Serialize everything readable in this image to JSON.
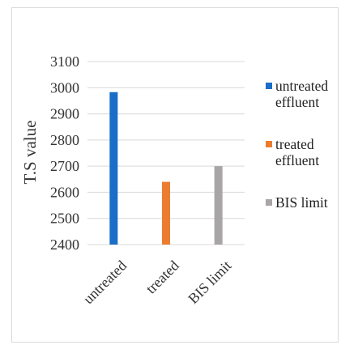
{
  "chart_data": {
    "type": "bar",
    "categories": [
      "untreated",
      "treated",
      "BIS limit"
    ],
    "values": [
      2983,
      2640,
      2700
    ],
    "colors": [
      "#1a6ec8",
      "#ec7c30",
      "#a8a5a6"
    ],
    "ylabel": "T.S value",
    "xlabel": "",
    "ylim": [
      2400,
      3100
    ],
    "yticks": [
      2400,
      2500,
      2600,
      2700,
      2800,
      2900,
      3000,
      3100
    ],
    "gridlines": true,
    "legend_position": "right",
    "legend": [
      {
        "label": "untreated effluent",
        "color": "#1a6ec8"
      },
      {
        "label": "treated effluent",
        "color": "#ec7c30"
      },
      {
        "label": "BIS limit",
        "color": "#a8a5a6"
      }
    ]
  }
}
